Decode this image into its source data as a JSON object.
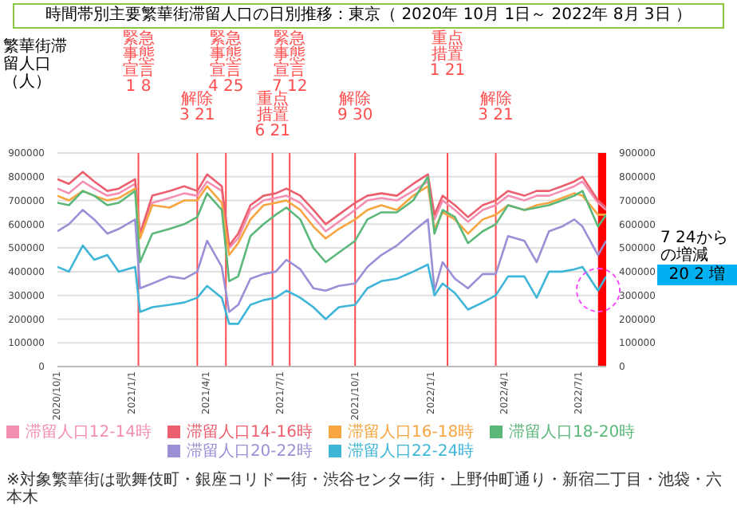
{
  "chart_data": {
    "type": "line",
    "title": "時間帯別主要繁華街滞留人口の日別推移：東京（ 2020年 10月 1日～ 2022年 8月 3日 ）",
    "ylabel": "繁華街滞留人口（人）",
    "x": [
      "2020-10-01",
      "2020-10-15",
      "2020-11-01",
      "2020-11-15",
      "2020-12-01",
      "2020-12-15",
      "2021-01-04",
      "2021-01-10",
      "2021-01-25",
      "2021-02-15",
      "2021-03-05",
      "2021-03-21",
      "2021-04-02",
      "2021-04-20",
      "2021-04-29",
      "2021-05-10",
      "2021-05-25",
      "2021-06-10",
      "2021-06-25",
      "2021-07-08",
      "2021-07-25",
      "2021-08-10",
      "2021-08-25",
      "2021-09-10",
      "2021-09-30",
      "2021-10-15",
      "2021-11-01",
      "2021-11-20",
      "2021-12-10",
      "2021-12-28",
      "2022-01-05",
      "2022-01-15",
      "2022-01-30",
      "2022-02-15",
      "2022-03-05",
      "2022-03-21",
      "2022-04-05",
      "2022-04-25",
      "2022-05-10",
      "2022-05-25",
      "2022-06-10",
      "2022-06-25",
      "2022-07-05",
      "2022-07-24",
      "2022-08-03"
    ],
    "series": [
      {
        "name": "滞留人口12-14時",
        "color": "#f48fb1",
        "values": [
          750000,
          730000,
          780000,
          750000,
          720000,
          730000,
          770000,
          550000,
          690000,
          710000,
          730000,
          720000,
          780000,
          740000,
          500000,
          540000,
          660000,
          700000,
          710000,
          720000,
          690000,
          630000,
          570000,
          610000,
          660000,
          700000,
          710000,
          700000,
          740000,
          780000,
          620000,
          700000,
          660000,
          610000,
          660000,
          680000,
          720000,
          700000,
          720000,
          720000,
          740000,
          760000,
          780000,
          690000,
          660000
        ]
      },
      {
        "name": "滞留人口14-16時",
        "color": "#ec5f6e",
        "values": [
          790000,
          770000,
          820000,
          780000,
          740000,
          750000,
          790000,
          560000,
          720000,
          740000,
          760000,
          740000,
          810000,
          760000,
          510000,
          560000,
          680000,
          720000,
          730000,
          750000,
          720000,
          660000,
          600000,
          640000,
          690000,
          720000,
          730000,
          720000,
          770000,
          810000,
          640000,
          720000,
          680000,
          630000,
          680000,
          700000,
          740000,
          720000,
          740000,
          740000,
          760000,
          780000,
          800000,
          700000,
          670000
        ]
      },
      {
        "name": "滞留人口16-18時",
        "color": "#f7a541",
        "values": [
          720000,
          700000,
          740000,
          720000,
          700000,
          710000,
          750000,
          540000,
          680000,
          670000,
          700000,
          700000,
          760000,
          690000,
          470000,
          520000,
          620000,
          680000,
          690000,
          700000,
          660000,
          590000,
          540000,
          580000,
          620000,
          660000,
          680000,
          660000,
          720000,
          760000,
          580000,
          650000,
          620000,
          560000,
          620000,
          640000,
          680000,
          660000,
          680000,
          690000,
          710000,
          730000,
          720000,
          640000,
          640000
        ]
      },
      {
        "name": "滞留人口18-20時",
        "color": "#5cb87a",
        "values": [
          690000,
          680000,
          740000,
          720000,
          680000,
          690000,
          740000,
          440000,
          560000,
          580000,
          600000,
          630000,
          730000,
          660000,
          360000,
          380000,
          550000,
          600000,
          640000,
          670000,
          620000,
          500000,
          440000,
          480000,
          530000,
          620000,
          650000,
          650000,
          700000,
          800000,
          560000,
          660000,
          630000,
          520000,
          570000,
          600000,
          680000,
          660000,
          670000,
          680000,
          700000,
          720000,
          740000,
          590000,
          640000
        ]
      },
      {
        "name": "滞留人口20-22時",
        "color": "#9b8fd6",
        "values": [
          570000,
          600000,
          660000,
          620000,
          560000,
          580000,
          620000,
          330000,
          350000,
          380000,
          370000,
          400000,
          530000,
          420000,
          230000,
          260000,
          370000,
          390000,
          400000,
          450000,
          410000,
          330000,
          320000,
          340000,
          350000,
          420000,
          470000,
          510000,
          570000,
          620000,
          320000,
          440000,
          370000,
          330000,
          390000,
          390000,
          550000,
          530000,
          440000,
          570000,
          590000,
          620000,
          590000,
          470000,
          530000
        ]
      },
      {
        "name": "滞留人口22-24時",
        "color": "#3fb6d8",
        "values": [
          420000,
          400000,
          510000,
          450000,
          470000,
          400000,
          420000,
          230000,
          250000,
          260000,
          270000,
          290000,
          340000,
          290000,
          180000,
          180000,
          260000,
          280000,
          290000,
          320000,
          290000,
          250000,
          200000,
          250000,
          260000,
          330000,
          360000,
          370000,
          400000,
          430000,
          300000,
          350000,
          310000,
          240000,
          270000,
          300000,
          380000,
          380000,
          290000,
          400000,
          400000,
          410000,
          420000,
          320000,
          380000
        ]
      }
    ],
    "xlim": [
      "2020-10-01",
      "2022-08-03"
    ],
    "ylim": [
      0,
      900000
    ],
    "yticks": [
      0,
      100000,
      200000,
      300000,
      400000,
      500000,
      600000,
      700000,
      800000,
      900000
    ],
    "y2lim": [
      0,
      900000
    ],
    "y2ticks": [
      0,
      100000,
      200000,
      300000,
      400000,
      500000,
      600000,
      700000,
      800000,
      900000
    ],
    "xticks": [
      {
        "value": "2020-10-01",
        "label": "2020/10/1"
      },
      {
        "value": "2021-01-01",
        "label": "2021/1/1"
      },
      {
        "value": "2021-04-01",
        "label": "2021/4/1"
      },
      {
        "value": "2021-07-01",
        "label": "2021/7/1"
      },
      {
        "value": "2021-10-01",
        "label": "2021/10/1"
      },
      {
        "value": "2022-01-01",
        "label": "2022/1/1"
      },
      {
        "value": "2022-04-01",
        "label": "2022/4/1"
      },
      {
        "value": "2022-07-01",
        "label": "2022/7/1"
      }
    ],
    "grid": "y",
    "legend": "bottom",
    "ref_lines": [
      {
        "axis": "x",
        "value": "2021-01-08",
        "label": "緊急事態宣言 1 8",
        "color": "#ff4d4d"
      },
      {
        "axis": "x",
        "value": "2021-03-21",
        "label": "解除 3 21",
        "color": "#ff4d4d"
      },
      {
        "axis": "x",
        "value": "2021-04-25",
        "label": "緊急事態宣言 4 25",
        "color": "#ff4d4d"
      },
      {
        "axis": "x",
        "value": "2021-06-21",
        "label": "重点措置 6 21",
        "color": "#ff4d4d"
      },
      {
        "axis": "x",
        "value": "2021-07-12",
        "label": "緊急事態宣言 7 12",
        "color": "#ff4d4d"
      },
      {
        "axis": "x",
        "value": "2021-09-30",
        "label": "解除 9 30",
        "color": "#ff4d4d"
      },
      {
        "axis": "x",
        "value": "2022-01-21",
        "label": "重点措置 1 21",
        "color": "#ff4d4d"
      },
      {
        "axis": "x",
        "value": "2022-03-21",
        "label": "解除 3 21",
        "color": "#ff4d4d"
      }
    ],
    "bands": [
      {
        "axis": "x",
        "from": "2022-07-24",
        "to": "2022-08-03",
        "color": "#ff0000"
      }
    ],
    "annotations": [
      "7 24からの増減",
      "20 2 増",
      "※対象繁華街は歌舞伎町・銀座コリドー街・渋谷センター街・上野仲町通り・新宿二丁目・池袋・六本木"
    ]
  }
}
